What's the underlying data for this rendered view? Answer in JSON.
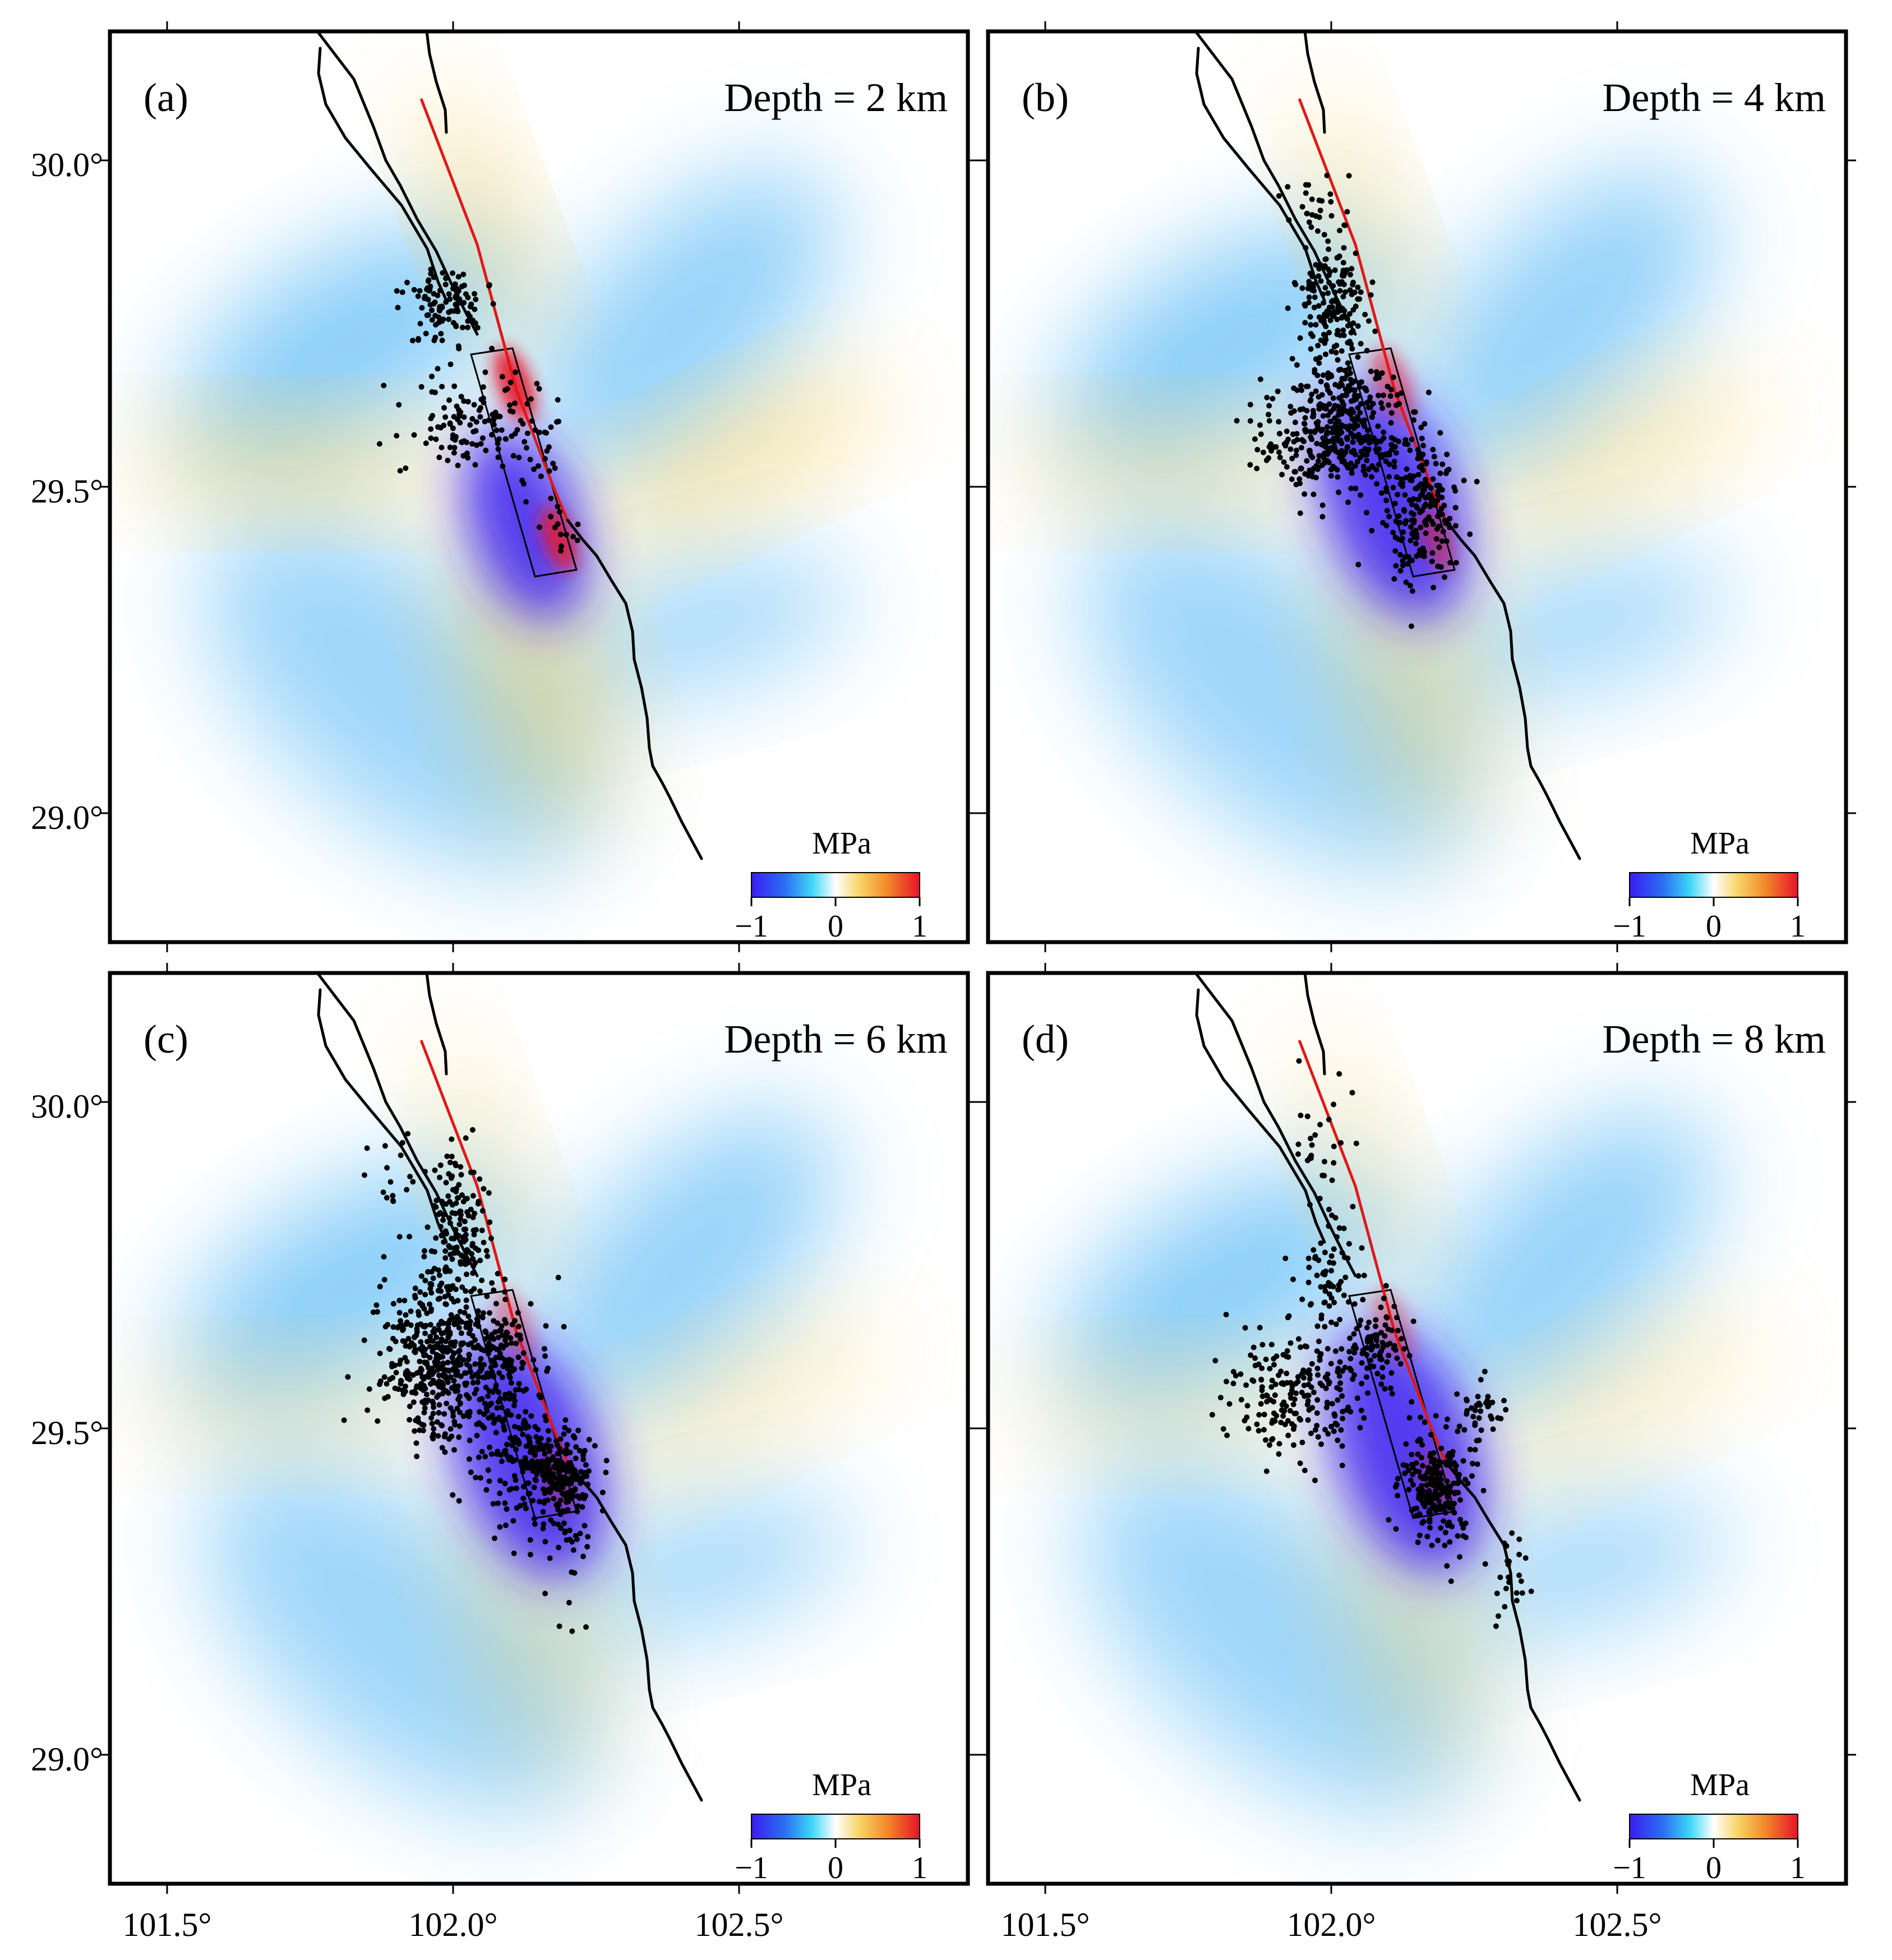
{
  "figure": {
    "unit_label": "MPa",
    "colorbar_ticks": [
      "−1",
      "0",
      "1"
    ],
    "colors": {
      "negative_strong": "#3b1cf0",
      "negative_mid": "#2aa6f4",
      "neutral": "#ffffff",
      "positive_mid": "#f7c94a",
      "positive_strong": "#e8122a",
      "rupture_trace": "#e01818",
      "fault_trace": "#000000",
      "events": "#000000",
      "frame": "#000000"
    },
    "axes": {
      "lon_labels": [
        "101.5°",
        "102.0°",
        "102.5°"
      ],
      "lat_labels": [
        "30.0°",
        "29.5°",
        "29.0°"
      ],
      "lon_range": [
        101.39,
        102.89
      ],
      "lat_range": [
        28.8,
        30.2
      ]
    }
  },
  "panels": [
    {
      "id": "a",
      "label": "(a)",
      "depth_text": "Depth = 2 km",
      "depth_km": 2
    },
    {
      "id": "b",
      "label": "(b)",
      "depth_text": "Depth = 4 km",
      "depth_km": 4
    },
    {
      "id": "c",
      "label": "(c)",
      "depth_text": "Depth = 6 km",
      "depth_km": 6
    },
    {
      "id": "d",
      "label": "(d)",
      "depth_text": "Depth = 8 km",
      "depth_km": 8
    }
  ]
}
